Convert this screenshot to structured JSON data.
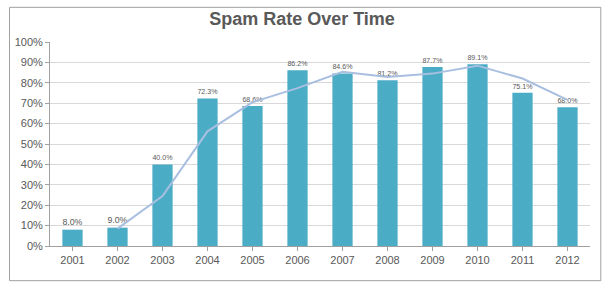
{
  "chart_data": {
    "type": "bar",
    "title": "Spam Rate Over Time",
    "categories": [
      "2001",
      "2002",
      "2003",
      "2004",
      "2005",
      "2006",
      "2007",
      "2008",
      "2009",
      "2010",
      "2011",
      "2012"
    ],
    "series": [
      {
        "type": "bar",
        "color": "#4bacc6",
        "values": [
          8.0,
          9.0,
          40.0,
          72.3,
          68.6,
          86.2,
          84.6,
          81.2,
          87.7,
          89.1,
          75.1,
          68.0
        ],
        "value_labels": [
          "8.0%",
          "9.0%",
          "40.0%",
          "72.3%",
          "68.6%",
          "86.2%",
          "84.6%",
          "81.2%",
          "87.7%",
          "89.1%",
          "75.1%",
          "68.0%"
        ]
      },
      {
        "type": "line",
        "color": "#a9bfe0",
        "values": [
          null,
          8.5,
          24.5,
          56.2,
          70.5,
          77.4,
          85.4,
          82.9,
          84.5,
          88.4,
          82.1,
          71.6
        ]
      }
    ],
    "ylim": [
      0,
      100
    ],
    "yticks": [
      {
        "value": 0,
        "label": "0%"
      },
      {
        "value": 10,
        "label": "10%"
      },
      {
        "value": 20,
        "label": "20%"
      },
      {
        "value": 30,
        "label": "30%"
      },
      {
        "value": 40,
        "label": "40%"
      },
      {
        "value": 50,
        "label": "50%"
      },
      {
        "value": 60,
        "label": "60%"
      },
      {
        "value": 70,
        "label": "70%"
      },
      {
        "value": 80,
        "label": "80%"
      },
      {
        "value": 90,
        "label": "90%"
      },
      {
        "value": 100,
        "label": "100%"
      }
    ],
    "grid": true,
    "data_labels": true
  }
}
